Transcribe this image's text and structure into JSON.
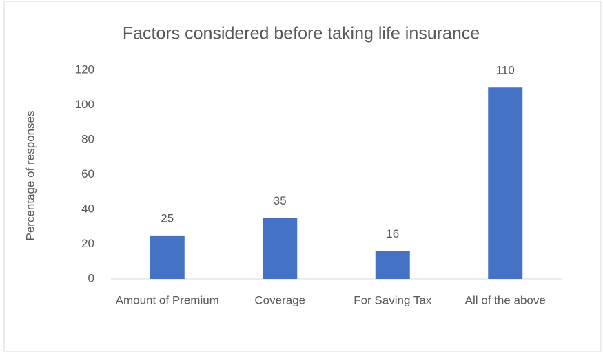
{
  "chart_data": {
    "type": "bar",
    "title": "Factors considered before taking life insurance",
    "y_label": "Percentage of responses",
    "categories": [
      "Amount of Premium",
      "Coverage",
      "For Saving Tax",
      "All of the above"
    ],
    "values": [
      25,
      35,
      16,
      110
    ],
    "color": "#4472c4",
    "ylim": [
      0,
      120
    ],
    "yticks": [
      0,
      20,
      40,
      60,
      80,
      100,
      120
    ],
    "grid": false,
    "data_labels": true
  }
}
